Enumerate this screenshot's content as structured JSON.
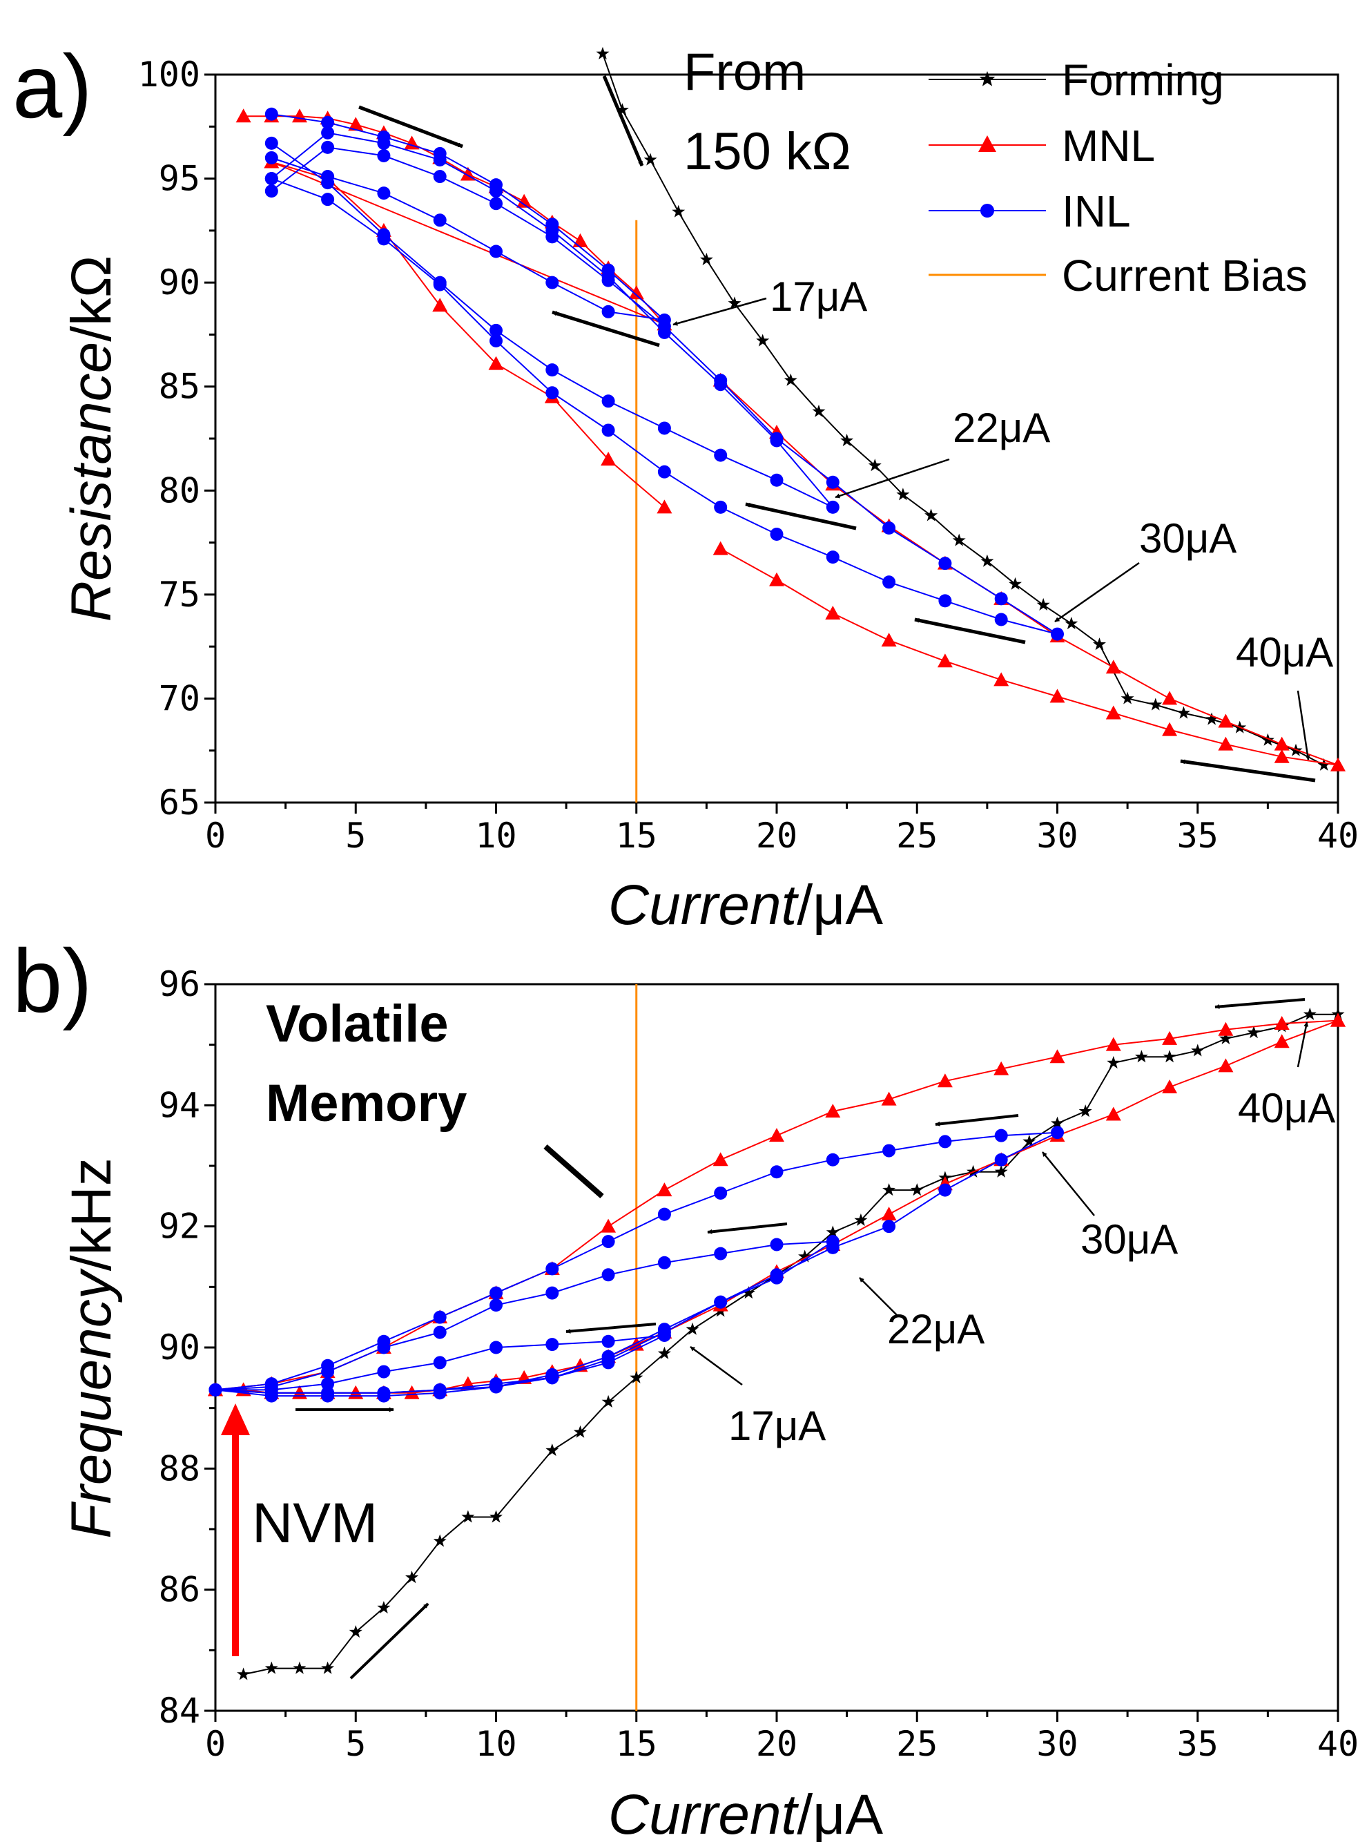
{
  "colors": {
    "forming": "#000000",
    "mnl": "#ff0000",
    "inl": "#0000ff",
    "bias": "#ff8c00",
    "nvm_arrow": "#ff0000",
    "axis": "#000000"
  },
  "legend": {
    "items": [
      {
        "key": "forming",
        "label": "Forming",
        "marker": "star"
      },
      {
        "key": "mnl",
        "label": "MNL",
        "marker": "triangle"
      },
      {
        "key": "inl",
        "label": "INL",
        "marker": "circle"
      },
      {
        "key": "bias",
        "label": "Current Bias",
        "marker": "none"
      }
    ]
  },
  "chart_data": [
    {
      "id": "a",
      "panel_label": "a)",
      "type": "line",
      "xlabel_italic": "Current",
      "xlabel_unit": "/μA",
      "ylabel_italic": "Resistance",
      "ylabel_unit": "/kΩ",
      "xlim": [
        0,
        40
      ],
      "ylim": [
        65,
        100
      ],
      "xticks": [
        0,
        5,
        10,
        15,
        20,
        25,
        30,
        35,
        40
      ],
      "yticks": [
        65,
        70,
        75,
        80,
        85,
        90,
        95,
        100
      ],
      "bias_current": 15,
      "bias_ylim": [
        65,
        93
      ],
      "note_line1": "From",
      "note_line2": "150 kΩ",
      "annotations": [
        {
          "text": "17μA"
        },
        {
          "text": "22μA"
        },
        {
          "text": "30μA"
        },
        {
          "text": "40μA"
        }
      ],
      "series": [
        {
          "name": "Forming",
          "key": "forming",
          "marker": "star",
          "x": [
            13.8,
            14.5,
            15.5,
            16.5,
            17.5,
            18.5,
            19.5,
            20.5,
            21.5,
            22.5,
            23.5,
            24.5,
            25.5,
            26.5,
            27.5,
            28.5,
            29.5,
            30.5,
            31.5,
            32.5,
            33.5,
            34.5,
            35.5,
            36.5,
            37.5,
            38.5,
            39.5
          ],
          "y": [
            101,
            98.3,
            95.9,
            93.4,
            91.1,
            89,
            87.2,
            85.3,
            83.8,
            82.4,
            81.2,
            79.8,
            78.8,
            77.6,
            76.6,
            75.5,
            74.5,
            73.6,
            72.6,
            70,
            69.7,
            69.3,
            69,
            68.6,
            68,
            67.5,
            66.8
          ]
        },
        {
          "name": "MNL 17μA",
          "key": "mnl",
          "marker": "triangle",
          "x": [
            1,
            2,
            3,
            4,
            5,
            6,
            7,
            8,
            9,
            10,
            11,
            12,
            13,
            14,
            15,
            16,
            2,
            4,
            6,
            8,
            10,
            12,
            14,
            16
          ],
          "y": [
            98,
            98,
            98,
            97.9,
            97.6,
            97.2,
            96.7,
            96,
            95.2,
            94.6,
            93.9,
            92.9,
            92,
            90.7,
            89.5,
            88,
            95.8,
            95,
            92.5,
            88.9,
            86.1,
            84.5,
            81.5,
            79.2
          ]
        },
        {
          "name": "MNL 40μA",
          "key": "mnl",
          "marker": "triangle",
          "x": [
            18,
            20,
            22,
            24,
            26,
            28,
            30,
            32,
            34,
            36,
            38,
            40,
            38,
            36,
            34,
            32,
            30,
            28,
            26,
            24,
            22,
            20,
            18
          ],
          "y": [
            85.3,
            82.8,
            80.3,
            78.3,
            76.5,
            74.8,
            73,
            71.5,
            70,
            68.9,
            67.8,
            66.8,
            67.2,
            67.8,
            68.5,
            69.3,
            70.1,
            70.9,
            71.8,
            72.8,
            74.1,
            75.7,
            77.2
          ]
        },
        {
          "name": "INL 17μA",
          "key": "inl",
          "marker": "circle",
          "x": [
            2,
            4,
            6,
            8,
            10,
            12,
            14,
            16,
            14,
            12,
            10,
            8,
            6,
            4,
            2
          ],
          "y": [
            98.1,
            97.7,
            97,
            96.2,
            94.7,
            92.8,
            90.6,
            88.2,
            88.6,
            90,
            91.5,
            93,
            94.3,
            95.1,
            96
          ]
        },
        {
          "name": "INL 22μA",
          "key": "inl",
          "marker": "circle",
          "x": [
            2,
            4,
            6,
            8,
            10,
            12,
            14,
            16,
            18,
            20,
            22,
            20,
            18,
            16,
            14,
            12,
            10,
            8,
            6,
            4,
            2
          ],
          "y": [
            95,
            97.2,
            96.7,
            95.9,
            94.4,
            92.5,
            90.3,
            87.6,
            85.1,
            82.4,
            79.2,
            80.5,
            81.7,
            83,
            84.3,
            85.8,
            87.7,
            90,
            92.3,
            94.8,
            96.7
          ]
        },
        {
          "name": "INL 30μA",
          "key": "inl",
          "marker": "circle",
          "x": [
            2,
            4,
            6,
            8,
            10,
            12,
            14,
            16,
            18,
            20,
            22,
            24,
            26,
            28,
            30,
            28,
            26,
            24,
            22,
            20,
            18,
            16,
            14,
            12,
            10,
            8,
            6,
            4,
            2
          ],
          "y": [
            94.4,
            96.5,
            96.1,
            95.1,
            93.8,
            92.2,
            90.1,
            87.9,
            85.3,
            82.5,
            80.4,
            78.2,
            76.5,
            74.8,
            73.1,
            73.8,
            74.7,
            75.6,
            76.8,
            77.9,
            79.2,
            80.9,
            82.9,
            84.7,
            87.2,
            89.9,
            92.1,
            94,
            95
          ]
        }
      ],
      "direction_arrows": 7
    },
    {
      "id": "b",
      "panel_label": "b)",
      "type": "line",
      "xlabel_italic": "Current",
      "xlabel_unit": "/μA",
      "ylabel_italic": "Frequency",
      "ylabel_unit": "/kHz",
      "xlim": [
        0,
        40
      ],
      "ylim": [
        84,
        96
      ],
      "xticks": [
        0,
        5,
        10,
        15,
        20,
        25,
        30,
        35,
        40
      ],
      "yticks": [
        84,
        86,
        88,
        90,
        92,
        94,
        96
      ],
      "bias_current": 15,
      "bias_ylim": [
        84,
        96
      ],
      "volatile_line1": "Volatile",
      "volatile_line2": "Memory",
      "nvm_label": "NVM",
      "annotations": [
        {
          "text": "40μA"
        },
        {
          "text": "30μA"
        },
        {
          "text": "22μA"
        },
        {
          "text": "17μA"
        }
      ],
      "series": [
        {
          "name": "Forming",
          "key": "forming",
          "marker": "star",
          "x": [
            1,
            2,
            3,
            4,
            5,
            6,
            7,
            8,
            9,
            10,
            12,
            13,
            14,
            15,
            16,
            17,
            18,
            19,
            20,
            21,
            22,
            23,
            24,
            25,
            26,
            27,
            28,
            29,
            30,
            31,
            32,
            33,
            34,
            35,
            36,
            37,
            38,
            39,
            40
          ],
          "y": [
            84.6,
            84.7,
            84.7,
            84.7,
            85.3,
            85.7,
            86.2,
            86.8,
            87.2,
            87.2,
            88.3,
            88.6,
            89.1,
            89.5,
            89.9,
            90.3,
            90.6,
            90.9,
            91.2,
            91.5,
            91.9,
            92.1,
            92.6,
            92.6,
            92.8,
            92.9,
            92.9,
            93.4,
            93.7,
            93.9,
            94.7,
            94.8,
            94.8,
            94.9,
            95.1,
            95.2,
            95.3,
            95.5,
            95.5
          ]
        },
        {
          "name": "MNL outer",
          "key": "mnl",
          "marker": "triangle",
          "x": [
            0,
            2,
            4,
            6,
            8,
            10,
            12,
            14,
            16,
            18,
            20,
            22,
            24,
            26,
            28,
            30,
            32,
            34,
            36,
            38,
            40
          ],
          "y": [
            89.3,
            89.4,
            89.6,
            90,
            90.5,
            90.9,
            91.3,
            92,
            92.6,
            93.1,
            93.5,
            93.9,
            94.1,
            94.4,
            94.6,
            94.8,
            95,
            95.1,
            95.25,
            95.35,
            95.4
          ]
        },
        {
          "name": "MNL inner",
          "key": "mnl",
          "marker": "triangle",
          "x": [
            0,
            1,
            2,
            3,
            4,
            5,
            6,
            7,
            8,
            9,
            10,
            11,
            12,
            13,
            14,
            15,
            16,
            18,
            20,
            22,
            24,
            26,
            28,
            30,
            32,
            34,
            36,
            38,
            40
          ],
          "y": [
            89.3,
            89.3,
            89.25,
            89.25,
            89.25,
            89.25,
            89.25,
            89.25,
            89.3,
            89.4,
            89.45,
            89.5,
            89.6,
            89.7,
            89.85,
            90.05,
            90.25,
            90.7,
            91.25,
            91.7,
            92.2,
            92.7,
            93.1,
            93.5,
            93.85,
            94.3,
            94.65,
            95.05,
            95.4
          ]
        },
        {
          "name": "INL 17μA",
          "key": "inl",
          "marker": "circle",
          "x": [
            0,
            2,
            4,
            6,
            8,
            10,
            12,
            14,
            16,
            14,
            12,
            10,
            8,
            6,
            4,
            2,
            0
          ],
          "y": [
            89.3,
            89.3,
            89.4,
            89.6,
            89.75,
            90,
            90.05,
            90.1,
            90.2,
            89.75,
            89.5,
            89.35,
            89.25,
            89.2,
            89.2,
            89.2,
            89.3
          ]
        },
        {
          "name": "INL 22μA",
          "key": "inl",
          "marker": "circle",
          "x": [
            0,
            2,
            4,
            6,
            8,
            10,
            12,
            14,
            16,
            18,
            20,
            22,
            20,
            18,
            16,
            14,
            12,
            10,
            8,
            6,
            4,
            2,
            0
          ],
          "y": [
            89.3,
            89.35,
            89.6,
            90,
            90.25,
            90.7,
            90.9,
            91.2,
            91.4,
            91.55,
            91.7,
            91.75,
            91.15,
            90.75,
            90.25,
            89.8,
            89.5,
            89.4,
            89.3,
            89.25,
            89.25,
            89.25,
            89.3
          ]
        },
        {
          "name": "INL 30μA",
          "key": "inl",
          "marker": "circle",
          "x": [
            0,
            2,
            4,
            6,
            8,
            10,
            12,
            14,
            16,
            18,
            20,
            22,
            24,
            26,
            28,
            30,
            28,
            26,
            24,
            22,
            20,
            18,
            16,
            14,
            12,
            10,
            8,
            6,
            4,
            2,
            0
          ],
          "y": [
            89.3,
            89.4,
            89.7,
            90.1,
            90.5,
            90.9,
            91.3,
            91.75,
            92.2,
            92.55,
            92.9,
            93.1,
            93.25,
            93.4,
            93.5,
            93.55,
            93.1,
            92.6,
            92,
            91.65,
            91.2,
            90.75,
            90.3,
            89.85,
            89.55,
            89.35,
            89.3,
            89.25,
            89.25,
            89.25,
            89.3
          ]
        }
      ],
      "direction_arrows": 6
    }
  ]
}
